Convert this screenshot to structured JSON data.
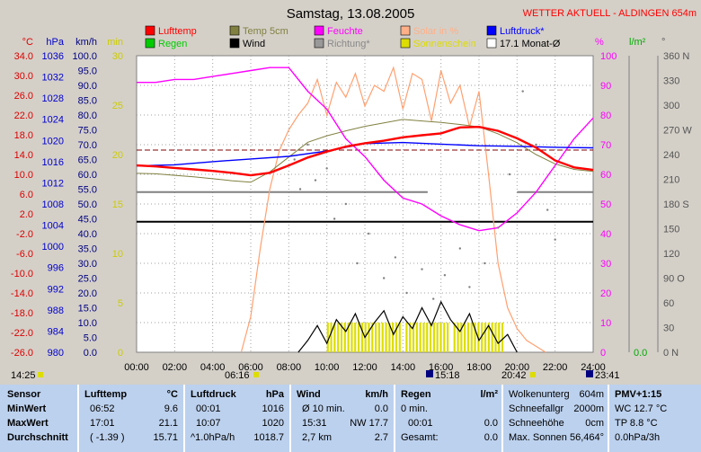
{
  "chart_data": {
    "type": "line",
    "title": "Samstag, 13.08.2005",
    "station": "WETTER AKTUELL - ALDINGEN 654m",
    "legend": [
      {
        "label": "Lufttemp",
        "color": "#ff0000"
      },
      {
        "label": "Temp 5cm",
        "color": "#808040"
      },
      {
        "label": "Feuchte",
        "color": "#ff00ff"
      },
      {
        "label": "Solar in %",
        "color": "#ffb088"
      },
      {
        "label": "Luftdruck*",
        "color": "#0000ff"
      },
      {
        "label": "Regen",
        "color": "#00cc00"
      },
      {
        "label": "Wind",
        "color": "#000000"
      },
      {
        "label": "Richtung*",
        "color": "#999999"
      },
      {
        "label": "Sonnenschein",
        "color": "#dddd00"
      },
      {
        "label": "17.1 Monat-Ø",
        "color": "#ffffff"
      }
    ],
    "axes_left": [
      {
        "unit": "°C",
        "color": "#dd0000",
        "ticks": [
          "34.0",
          "30.0",
          "26.0",
          "22.0",
          "18.0",
          "14.0",
          "10.0",
          "6.0",
          "2.0",
          "-2.0",
          "-6.0",
          "-10.0",
          "-14.0",
          "-18.0",
          "-22.0",
          "-26.0"
        ]
      },
      {
        "unit": "hPa",
        "color": "#0000cc",
        "ticks": [
          "1036",
          "1032",
          "1028",
          "1024",
          "1020",
          "1016",
          "1012",
          "1008",
          "1004",
          "1000",
          "996",
          "992",
          "988",
          "984",
          "980"
        ]
      },
      {
        "unit": "km/h",
        "color": "#000080",
        "ticks": [
          "100.0",
          "95.0",
          "90.0",
          "85.0",
          "80.0",
          "75.0",
          "70.0",
          "65.0",
          "60.0",
          "55.0",
          "50.0",
          "45.0",
          "40.0",
          "35.0",
          "30.0",
          "25.0",
          "20.0",
          "15.0",
          "10.0",
          "5.0",
          "0.0"
        ]
      },
      {
        "unit": "min",
        "color": "#cccc00",
        "ticks": [
          "30",
          "25",
          "20",
          "15",
          "10",
          "5",
          "0"
        ]
      }
    ],
    "axes_right": [
      {
        "unit": "%",
        "color": "#ff00ff",
        "ticks": [
          "100",
          "90",
          "80",
          "70",
          "60",
          "50",
          "40",
          "30",
          "20",
          "10",
          "0"
        ]
      },
      {
        "unit": "l/m²",
        "color": "#00aa00",
        "ticks": [
          "0.0"
        ]
      },
      {
        "unit": "°",
        "color": "#555555",
        "ticks": [
          "360 N",
          "330",
          "300",
          "270 W",
          "240",
          "210",
          "180 S",
          "150",
          "120",
          "90 O",
          "60",
          "30",
          "0 N"
        ]
      }
    ],
    "x_ticks": [
      "00:00",
      "02:00",
      "04:00",
      "06:00",
      "08:00",
      "10:00",
      "12:00",
      "14:00",
      "16:00",
      "18:00",
      "20:00",
      "22:00",
      "24:00"
    ],
    "time_markers": {
      "now": "14:25",
      "sunrise": "06:16",
      "noon": "15:18",
      "sunset": "20:42",
      "end": "23:41"
    },
    "series": [
      {
        "name": "Lufttemp",
        "color": "#ff0000",
        "y_axis_range": [
          -26,
          34
        ],
        "x": [
          0,
          1,
          2,
          3,
          4,
          5,
          6,
          7,
          8,
          9,
          10,
          11,
          12,
          13,
          14,
          15,
          16,
          17,
          18,
          19,
          20,
          21,
          22,
          23,
          24
        ],
        "values": [
          11.8,
          11.6,
          11.3,
          11.0,
          10.7,
          10.3,
          9.8,
          10.3,
          11.8,
          13.4,
          14.6,
          15.6,
          16.3,
          16.8,
          17.5,
          17.9,
          18.3,
          19.5,
          19.6,
          18.8,
          17.3,
          15.4,
          12.8,
          11.4,
          10.9
        ]
      },
      {
        "name": "Temp 5cm",
        "color": "#808040",
        "y_axis_range": [
          -26,
          34
        ],
        "x": [
          0,
          1,
          2,
          3,
          4,
          5,
          6,
          7,
          8,
          9,
          10,
          11,
          12,
          13,
          14,
          15,
          16,
          17,
          18,
          19,
          20,
          21,
          22,
          23,
          24
        ],
        "values": [
          10.2,
          10.1,
          9.8,
          9.5,
          9.1,
          8.7,
          8.4,
          10.5,
          13.5,
          16.5,
          17.8,
          18.8,
          19.7,
          20.4,
          21.1,
          20.8,
          20.5,
          20.1,
          19.6,
          18.2,
          16.4,
          14.0,
          12.1,
          11.0,
          10.6
        ]
      },
      {
        "name": "Feuchte",
        "color": "#ff00ff",
        "y_axis_range": [
          0,
          100
        ],
        "x": [
          0,
          1,
          2,
          3,
          4,
          5,
          6,
          7,
          8,
          9,
          10,
          11,
          12,
          13,
          14,
          15,
          16,
          17,
          18,
          19,
          20,
          21,
          22,
          23,
          24
        ],
        "values": [
          91,
          91,
          92,
          92,
          93,
          94,
          95,
          96,
          96,
          88,
          82,
          72,
          66,
          58,
          52,
          50,
          46,
          43,
          41,
          42,
          47,
          54,
          63,
          72,
          79
        ]
      },
      {
        "name": "Luftdruck*",
        "color": "#0000ff",
        "y_axis_range": [
          980,
          1036
        ],
        "x": [
          0,
          2,
          4,
          6,
          8,
          10,
          12,
          14,
          16,
          18,
          20,
          22,
          24
        ],
        "values": [
          1015.2,
          1015.4,
          1016.0,
          1016.5,
          1017.0,
          1018.0,
          1019.4,
          1019.6,
          1019.3,
          1019.0,
          1018.9,
          1018.7,
          1018.6
        ]
      },
      {
        "name": "Solar in %",
        "color": "#ffa070",
        "y_axis_range": [
          0,
          100
        ],
        "x": [
          5.5,
          6,
          6.5,
          7,
          7.5,
          8,
          8.5,
          9,
          9.5,
          10,
          10.5,
          11,
          11.5,
          12,
          12.5,
          13,
          13.5,
          14,
          14.5,
          15,
          15.5,
          16,
          16.5,
          17,
          17.5,
          18,
          18.5,
          19,
          19.5,
          20,
          20.5,
          21,
          21.5
        ],
        "values": [
          0,
          12,
          35,
          55,
          68,
          75,
          80,
          84,
          92,
          80,
          91,
          86,
          94,
          83,
          90,
          88,
          96,
          82,
          94,
          92,
          78,
          95,
          84,
          90,
          76,
          88,
          60,
          30,
          15,
          8,
          4,
          2,
          0
        ]
      },
      {
        "name": "Wind",
        "color": "#000000",
        "y_axis_range": [
          0,
          100
        ],
        "x": [
          8.5,
          9,
          9.5,
          10,
          10.5,
          11,
          11.5,
          12,
          12.5,
          13,
          13.5,
          14,
          14.5,
          15,
          15.5,
          16,
          16.5,
          17,
          17.5,
          18,
          18.5,
          19,
          19.5,
          20
        ],
        "values": [
          0,
          4,
          9,
          3,
          11,
          7,
          13,
          5,
          10,
          14,
          6,
          12,
          8,
          15,
          9,
          17,
          11,
          7,
          13,
          4,
          9,
          3,
          6,
          0
        ]
      }
    ]
  },
  "panel": {
    "sensor": {
      "h": "Sensor",
      "min": "MinWert",
      "max": "MaxWert",
      "avg": "Durchschnitt"
    },
    "temp": {
      "h": "Lufttemp",
      "u": "°C",
      "r1a": "06:52",
      "r1b": "9.6",
      "r2a": "17:01",
      "r2b": "21.1",
      "r3a": "( -1.39 )",
      "r3b": "15.71"
    },
    "press": {
      "h": "Luftdruck",
      "u": "hPa",
      "r1a": "00:01",
      "r1b": "1016",
      "r2a": "10:07",
      "r2b": "1020",
      "r3a": "^1.0hPa/h",
      "r3b": "1018.7"
    },
    "wind": {
      "h": "Wind",
      "u": "km/h",
      "r1a": "Ø 10 min.",
      "r1b": "0.0",
      "r2a": "15:31",
      "r2b": "NW 17.7",
      "r3a": "2,7 km",
      "r3b": "2.7"
    },
    "rain": {
      "h": "Regen",
      "u": "l/m²",
      "r1a": "0 min.",
      "r1b": "",
      "r2a": "00:01",
      "r2b": "0.0",
      "r3a": "Gesamt:",
      "r3b": "0.0"
    },
    "misc": {
      "r0a": "Wolkenunterg",
      "r0b": "604m",
      "r1a": "Schneefallgr",
      "r1b": "2000m",
      "r2a": "Schneehöhe",
      "r2b": "0cm",
      "r3a": "Max. Sonnen",
      "r3b": "56,464°"
    },
    "pmv": {
      "h": "PMV+1:15",
      "r1": "WC 12.7 °C",
      "r2": "TP 8.8 °C",
      "r3": "0.0hPa/3h"
    }
  }
}
